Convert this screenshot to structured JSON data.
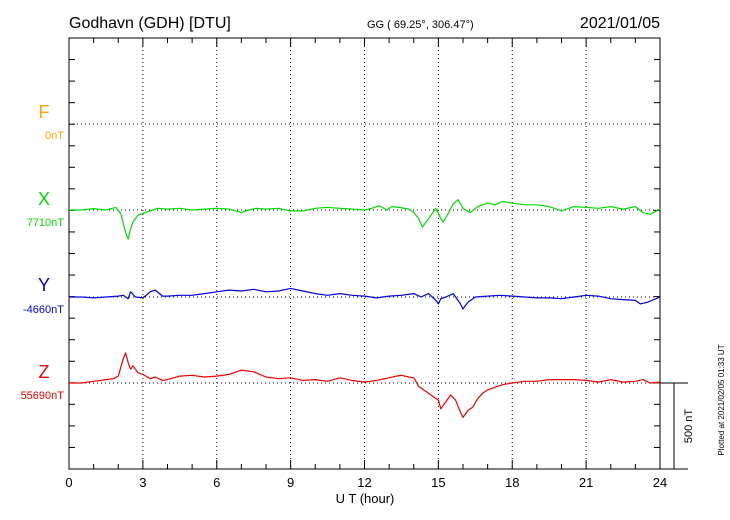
{
  "header": {
    "station": "Godhavn (GDH)  [DTU]",
    "coords": "GG ( 69.25°, 306.47°)",
    "date": "2021/01/05"
  },
  "footer_note": "Plotted at 2021/02/05 01:33 UT",
  "scale_label": "500 nT",
  "colors": {
    "F": "#ffa500",
    "X": "#00dd00",
    "Y": "#0000dd",
    "Z": "#ee0000",
    "axis": "#000000",
    "grid": "#000000"
  },
  "chart_data": {
    "type": "line",
    "xlabel": "U T (hour)",
    "xlim": [
      0,
      24
    ],
    "xticks": [
      0,
      3,
      6,
      9,
      12,
      15,
      18,
      21,
      24
    ],
    "grid": true,
    "scale_bar_nT": 500,
    "series": [
      {
        "name": "F",
        "baseline_label": "0nT",
        "color": "#ffa500",
        "x": [],
        "y": []
      },
      {
        "name": "X",
        "baseline_label": "7710nT",
        "color": "#00dd00",
        "x": [
          0,
          0.5,
          1,
          1.5,
          1.9,
          2.1,
          2.3,
          2.4,
          2.5,
          2.6,
          2.8,
          3.0,
          3.3,
          3.6,
          4,
          4.5,
          5,
          5.5,
          6,
          6.5,
          7,
          7.3,
          7.6,
          8,
          8.5,
          9,
          9.5,
          10,
          10.5,
          11,
          11.5,
          12,
          12.3,
          12.6,
          12.9,
          13.1,
          13.4,
          13.8,
          14.0,
          14.2,
          14.35,
          14.5,
          14.7,
          14.9,
          15.1,
          15.2,
          15.4,
          15.6,
          15.8,
          16.0,
          16.3,
          16.6,
          17,
          17.3,
          17.6,
          18,
          18.5,
          19,
          19.5,
          20,
          20.5,
          21,
          21.5,
          22,
          22.5,
          23,
          23.3,
          23.6,
          24
        ],
        "y": [
          0,
          0,
          8,
          0,
          15,
          -20,
          -130,
          -170,
          -110,
          -70,
          -30,
          -20,
          -5,
          10,
          5,
          10,
          0,
          5,
          10,
          5,
          -15,
          0,
          10,
          5,
          10,
          -5,
          -5,
          10,
          15,
          10,
          5,
          0,
          10,
          25,
          0,
          20,
          15,
          5,
          -15,
          -50,
          -100,
          -70,
          -30,
          10,
          -50,
          -70,
          -20,
          35,
          60,
          10,
          -15,
          20,
          40,
          30,
          50,
          40,
          30,
          30,
          20,
          -5,
          20,
          15,
          10,
          20,
          5,
          20,
          -15,
          -25,
          5
        ]
      },
      {
        "name": "Y",
        "baseline_label": "-4660nT",
        "color": "#0000dd",
        "x": [
          0,
          0.5,
          1,
          1.5,
          2,
          2.2,
          2.4,
          2.5,
          2.7,
          3,
          3.3,
          3.5,
          3.8,
          4,
          4.5,
          5,
          5.5,
          6,
          6.5,
          7,
          7.5,
          8,
          8.5,
          9,
          9.5,
          10,
          10.5,
          11,
          11.5,
          12,
          12.5,
          13,
          13.5,
          14,
          14.3,
          14.6,
          14.9,
          15.0,
          15.1,
          15.3,
          15.6,
          15.9,
          16.0,
          16.2,
          16.5,
          17,
          17.5,
          18,
          18.5,
          19,
          19.5,
          20,
          20.5,
          21,
          21.5,
          22,
          22.5,
          23,
          23.2,
          23.5,
          24
        ],
        "y": [
          0,
          0,
          -5,
          0,
          5,
          10,
          -10,
          30,
          0,
          -5,
          30,
          40,
          5,
          5,
          10,
          10,
          20,
          30,
          40,
          35,
          45,
          30,
          35,
          50,
          35,
          20,
          10,
          20,
          10,
          5,
          -5,
          5,
          10,
          20,
          0,
          20,
          -20,
          -40,
          -10,
          0,
          20,
          -40,
          -70,
          -30,
          0,
          5,
          10,
          5,
          0,
          -5,
          -5,
          -10,
          0,
          10,
          5,
          -10,
          -15,
          -20,
          -40,
          -30,
          0
        ]
      },
      {
        "name": "Z",
        "baseline_label": "55690nT",
        "color": "#ee0000",
        "x": [
          0,
          0.5,
          1,
          1.5,
          1.8,
          2.0,
          2.2,
          2.3,
          2.4,
          2.5,
          2.6,
          2.8,
          3,
          3.3,
          3.5,
          3.8,
          4,
          4.5,
          5,
          5.5,
          6,
          6.5,
          7,
          7.5,
          8,
          8.5,
          9,
          9.5,
          10,
          10.5,
          11,
          11.5,
          12,
          12.5,
          13,
          13.3,
          13.5,
          13.8,
          14,
          14.2,
          14.4,
          14.6,
          14.8,
          15.0,
          15.1,
          15.3,
          15.5,
          15.7,
          15.9,
          16.0,
          16.2,
          16.4,
          16.6,
          16.8,
          17,
          17.3,
          17.6,
          18,
          18.5,
          19,
          19.5,
          20,
          20.5,
          21,
          21.5,
          22,
          22.5,
          23,
          23.3,
          23.6,
          24
        ],
        "y": [
          0,
          0,
          10,
          20,
          25,
          40,
          140,
          175,
          120,
          80,
          100,
          60,
          50,
          25,
          35,
          15,
          20,
          40,
          45,
          35,
          40,
          50,
          75,
          65,
          35,
          25,
          30,
          15,
          20,
          10,
          30,
          15,
          5,
          15,
          30,
          40,
          45,
          35,
          30,
          -20,
          -40,
          -60,
          -80,
          -100,
          -150,
          -110,
          -70,
          -100,
          -170,
          -200,
          -160,
          -140,
          -90,
          -60,
          -40,
          -25,
          -10,
          0,
          10,
          10,
          20,
          20,
          20,
          15,
          5,
          20,
          5,
          10,
          20,
          0,
          5
        ]
      }
    ]
  }
}
